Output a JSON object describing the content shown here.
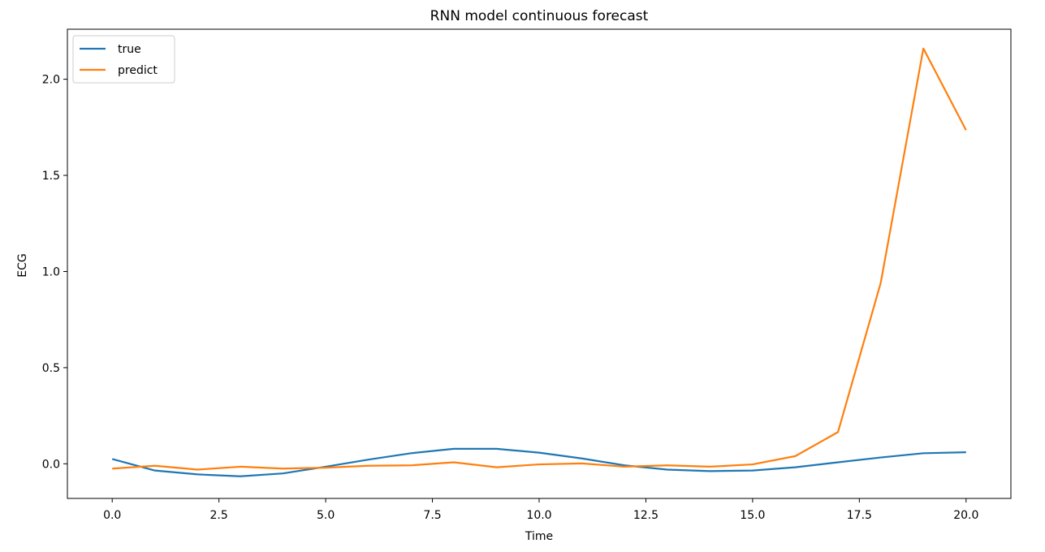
{
  "chart_data": {
    "type": "line",
    "title": "RNN model continuous forecast",
    "xlabel": "Time",
    "ylabel": "ECG",
    "xlim": [
      -1.05,
      21.05
    ],
    "ylim": [
      -0.18,
      2.26
    ],
    "xticks": [
      0.0,
      2.5,
      5.0,
      7.5,
      10.0,
      12.5,
      15.0,
      17.5,
      20.0
    ],
    "xtick_labels": [
      "0.0",
      "2.5",
      "5.0",
      "7.5",
      "10.0",
      "12.5",
      "15.0",
      "17.5",
      "20.0"
    ],
    "yticks": [
      0.0,
      0.5,
      1.0,
      1.5,
      2.0
    ],
    "ytick_labels": [
      "0.0",
      "0.5",
      "1.0",
      "1.5",
      "2.0"
    ],
    "grid": false,
    "legend_position": "top-left",
    "x": [
      0,
      1,
      2,
      3,
      4,
      5,
      6,
      7,
      8,
      9,
      10,
      11,
      12,
      13,
      14,
      15,
      16,
      17,
      18,
      19,
      20
    ],
    "series": [
      {
        "name": "true",
        "color": "#1f77b4",
        "values": [
          0.025,
          -0.035,
          -0.055,
          -0.065,
          -0.05,
          -0.015,
          0.022,
          0.055,
          0.078,
          0.078,
          0.058,
          0.028,
          -0.008,
          -0.03,
          -0.038,
          -0.035,
          -0.018,
          0.008,
          0.033,
          0.055,
          0.06
        ]
      },
      {
        "name": "predict",
        "color": "#ff7f0e",
        "values": [
          -0.025,
          -0.01,
          -0.03,
          -0.015,
          -0.025,
          -0.02,
          -0.01,
          -0.008,
          0.008,
          -0.018,
          -0.003,
          0.002,
          -0.015,
          -0.008,
          -0.015,
          -0.003,
          0.04,
          0.165,
          0.94,
          2.16,
          1.735
        ]
      }
    ]
  }
}
